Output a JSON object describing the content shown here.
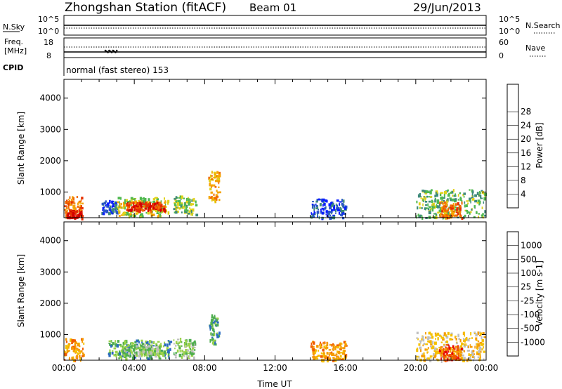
{
  "header": {
    "station": "Zhongshan Station (fitACF)",
    "beam": "Beam 01",
    "date": "29/Jun/2013"
  },
  "noise_panel": {
    "left_label": "N.Sky",
    "right_label": "N.Search",
    "left_ticks": [
      "10^5",
      "10^0"
    ],
    "right_ticks": [
      "10^5",
      "10^0"
    ]
  },
  "freq_panel": {
    "left_label_1": "Freq.",
    "left_label_2": "[MHz]",
    "right_label": "Nave",
    "left_ticks": [
      "18",
      "8"
    ],
    "right_ticks": [
      "60",
      "0"
    ]
  },
  "cpid_panel": {
    "label": "CPID",
    "value": "normal (fast stereo) 153"
  },
  "colors": {
    "power_scale": [
      "#0a1eff",
      "#2a55c8",
      "#3e8a7a",
      "#4fb84f",
      "#e0d21a",
      "#f5a400",
      "#f06a00",
      "#e63000",
      "#d40000"
    ],
    "velocity_scale": [
      "#e60000",
      "#f05a00",
      "#f59a00",
      "#f5c000",
      "#bfbfbf",
      "#9ad24a",
      "#4fae4f",
      "#2a6ac0",
      "#1a2aa8"
    ]
  },
  "chart_data": [
    {
      "type": "heatmap",
      "title": "",
      "ylabel": "Slant Range [km]",
      "xlabel": "",
      "xlim": [
        "00:00",
        "24:00"
      ],
      "ylim": [
        180,
        4600
      ],
      "yticks": [
        "1000",
        "2000",
        "3000",
        "4000"
      ],
      "colorbar": {
        "label": "Power [dB]",
        "ticks": [
          "4",
          "8",
          "12",
          "16",
          "20",
          "24",
          "28"
        ],
        "range": [
          0,
          32
        ]
      },
      "regions": [
        {
          "t0": 0.0,
          "t1": 1.0,
          "r0": 200,
          "r1": 900,
          "level": 6
        },
        {
          "t0": 0.15,
          "t1": 1.0,
          "r0": 200,
          "r1": 450,
          "level": 8
        },
        {
          "t0": 2.1,
          "t1": 3.0,
          "r0": 350,
          "r1": 750,
          "level": 1
        },
        {
          "t0": 3.0,
          "t1": 5.9,
          "r0": 250,
          "r1": 850,
          "level": 4
        },
        {
          "t0": 3.5,
          "t1": 5.7,
          "r0": 420,
          "r1": 700,
          "level": 7
        },
        {
          "t0": 6.2,
          "t1": 7.5,
          "r0": 300,
          "r1": 900,
          "level": 3
        },
        {
          "t0": 8.2,
          "t1": 8.8,
          "r0": 700,
          "r1": 1700,
          "level": 5
        },
        {
          "t0": 14.0,
          "t1": 16.0,
          "r0": 200,
          "r1": 800,
          "level": 1
        },
        {
          "t0": 20.0,
          "t1": 23.9,
          "r0": 200,
          "r1": 1100,
          "level": 3
        },
        {
          "t0": 21.3,
          "t1": 22.6,
          "r0": 200,
          "r1": 700,
          "level": 6
        }
      ]
    },
    {
      "type": "heatmap",
      "title": "",
      "ylabel": "Slant Range [km]",
      "xlabel": "Time UT",
      "xlim": [
        "00:00",
        "24:00"
      ],
      "ylim": [
        180,
        4600
      ],
      "xticks": [
        "00:00",
        "04:00",
        "08:00",
        "12:00",
        "16:00",
        "20:00",
        "00:00"
      ],
      "yticks": [
        "1000",
        "2000",
        "3000",
        "4000"
      ],
      "colorbar": {
        "label": "Velocity [m s-1]",
        "ticks": [
          "-1000",
          "-500",
          "-100",
          "-25",
          "25",
          "100",
          "500",
          "1000"
        ],
        "range": [
          -1250,
          1250
        ]
      },
      "regions": [
        {
          "t0": 0.0,
          "t1": 1.1,
          "r0": 200,
          "r1": 900,
          "level": 2
        },
        {
          "t0": 2.5,
          "t1": 6.0,
          "r0": 250,
          "r1": 850,
          "level": 6
        },
        {
          "t0": 3.2,
          "t1": 5.5,
          "r0": 350,
          "r1": 700,
          "level": 5
        },
        {
          "t0": 6.2,
          "t1": 7.4,
          "r0": 300,
          "r1": 900,
          "level": 5
        },
        {
          "t0": 8.2,
          "t1": 8.8,
          "r0": 700,
          "r1": 1700,
          "level": 6
        },
        {
          "t0": 14.0,
          "t1": 16.0,
          "r0": 200,
          "r1": 800,
          "level": 2
        },
        {
          "t0": 20.0,
          "t1": 23.9,
          "r0": 200,
          "r1": 1100,
          "level": 3
        },
        {
          "t0": 21.3,
          "t1": 22.6,
          "r0": 200,
          "r1": 700,
          "level": 1
        }
      ]
    }
  ]
}
